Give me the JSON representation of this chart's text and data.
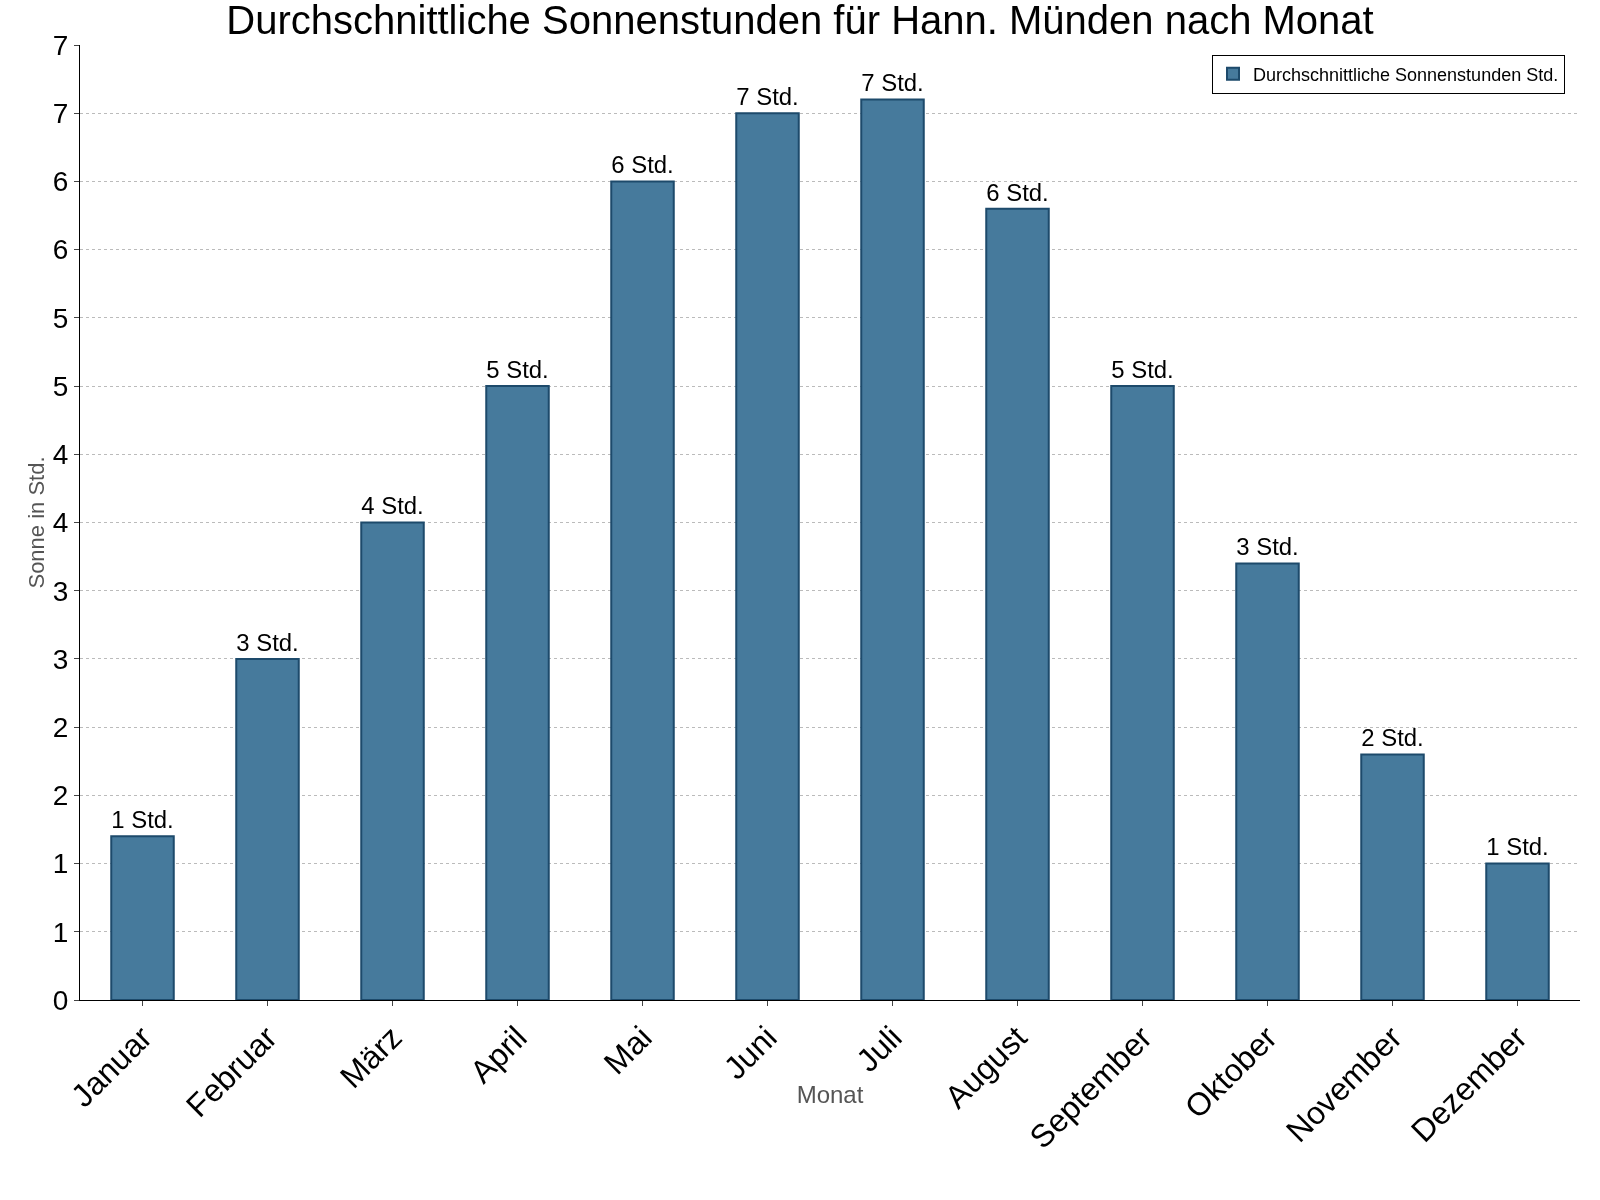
{
  "chart_data": {
    "type": "bar",
    "title": "Durchschnittliche Sonnenstunden für Hann. Münden nach Monat",
    "xlabel": "Monat",
    "ylabel": "Sonne in Std.",
    "categories": [
      "Januar",
      "Februar",
      "März",
      "April",
      "Mai",
      "Juni",
      "Juli",
      "August",
      "September",
      "Oktober",
      "November",
      "Dezember"
    ],
    "series": [
      {
        "name": "Durchschnittliche Sonnenstunden Std.",
        "color": "#467a9c",
        "values": [
          1.2,
          2.5,
          3.5,
          4.5,
          6.0,
          6.5,
          6.6,
          5.8,
          4.5,
          3.2,
          1.8,
          1.0
        ],
        "value_labels": [
          "1 Std.",
          "3 Std.",
          "4 Std.",
          "5 Std.",
          "6 Std.",
          "7 Std.",
          "7 Std.",
          "6 Std.",
          "5 Std.",
          "3 Std.",
          "2 Std.",
          "1 Std."
        ]
      }
    ],
    "ylim": [
      0,
      7
    ],
    "yticks": [
      0,
      {
        "value": 0.5,
        "label": "1"
      },
      1,
      {
        "value": 1.5,
        "label": "2"
      },
      2,
      {
        "value": 2.5,
        "label": "3"
      },
      3,
      {
        "value": 3.5,
        "label": "4"
      },
      4,
      {
        "value": 4.5,
        "label": "5"
      },
      5,
      {
        "value": 5.5,
        "label": "6"
      },
      6,
      {
        "value": 6.5,
        "label": "7"
      },
      7
    ],
    "grid": "y",
    "legend": "top right"
  }
}
